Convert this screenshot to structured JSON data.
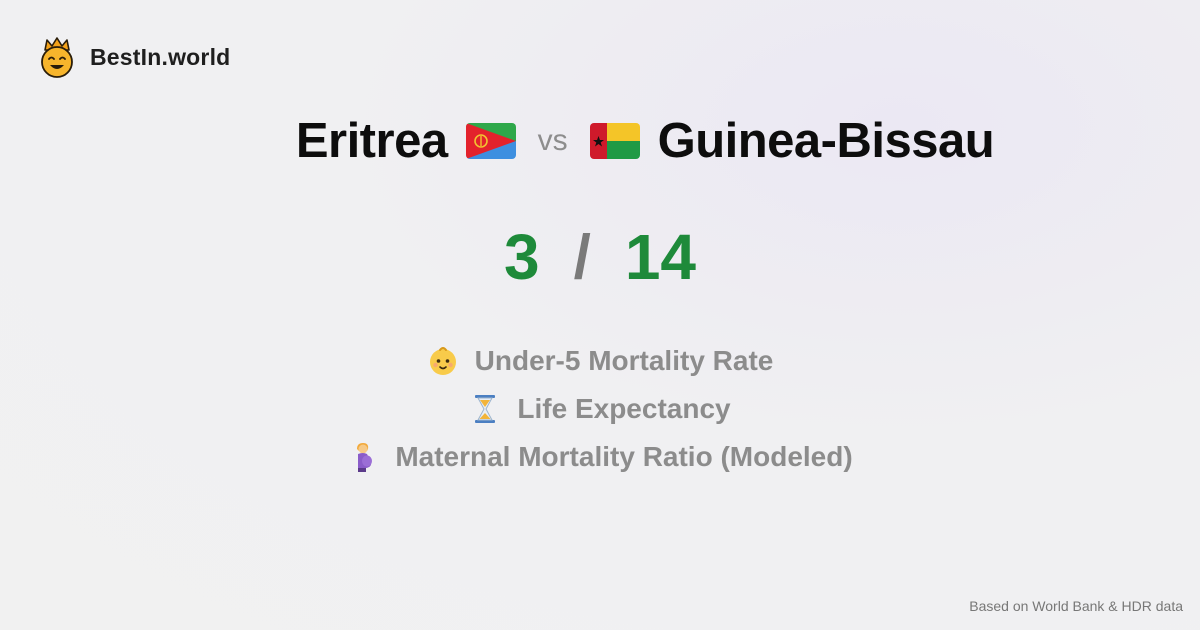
{
  "brand": {
    "name": "BestIn.world",
    "logo_icon": "crowned-smiley-icon"
  },
  "comparison": {
    "left": {
      "name": "Eritrea",
      "flag_icon": "eritrea-flag-icon"
    },
    "vs_label": "vs",
    "right": {
      "name": "Guinea-Bissau",
      "flag_icon": "guinea-bissau-flag-icon"
    }
  },
  "score": {
    "left": "3",
    "separator": "/",
    "right": "14",
    "color": "#1e8a3a"
  },
  "metrics": [
    {
      "icon": "baby-icon",
      "label": "Under-5 Mortality Rate"
    },
    {
      "icon": "hourglass-icon",
      "label": "Life Expectancy"
    },
    {
      "icon": "pregnant-woman-icon",
      "label": "Maternal Mortality Ratio (Modeled)"
    }
  ],
  "footer": {
    "text": "Based on World Bank & HDR data"
  }
}
